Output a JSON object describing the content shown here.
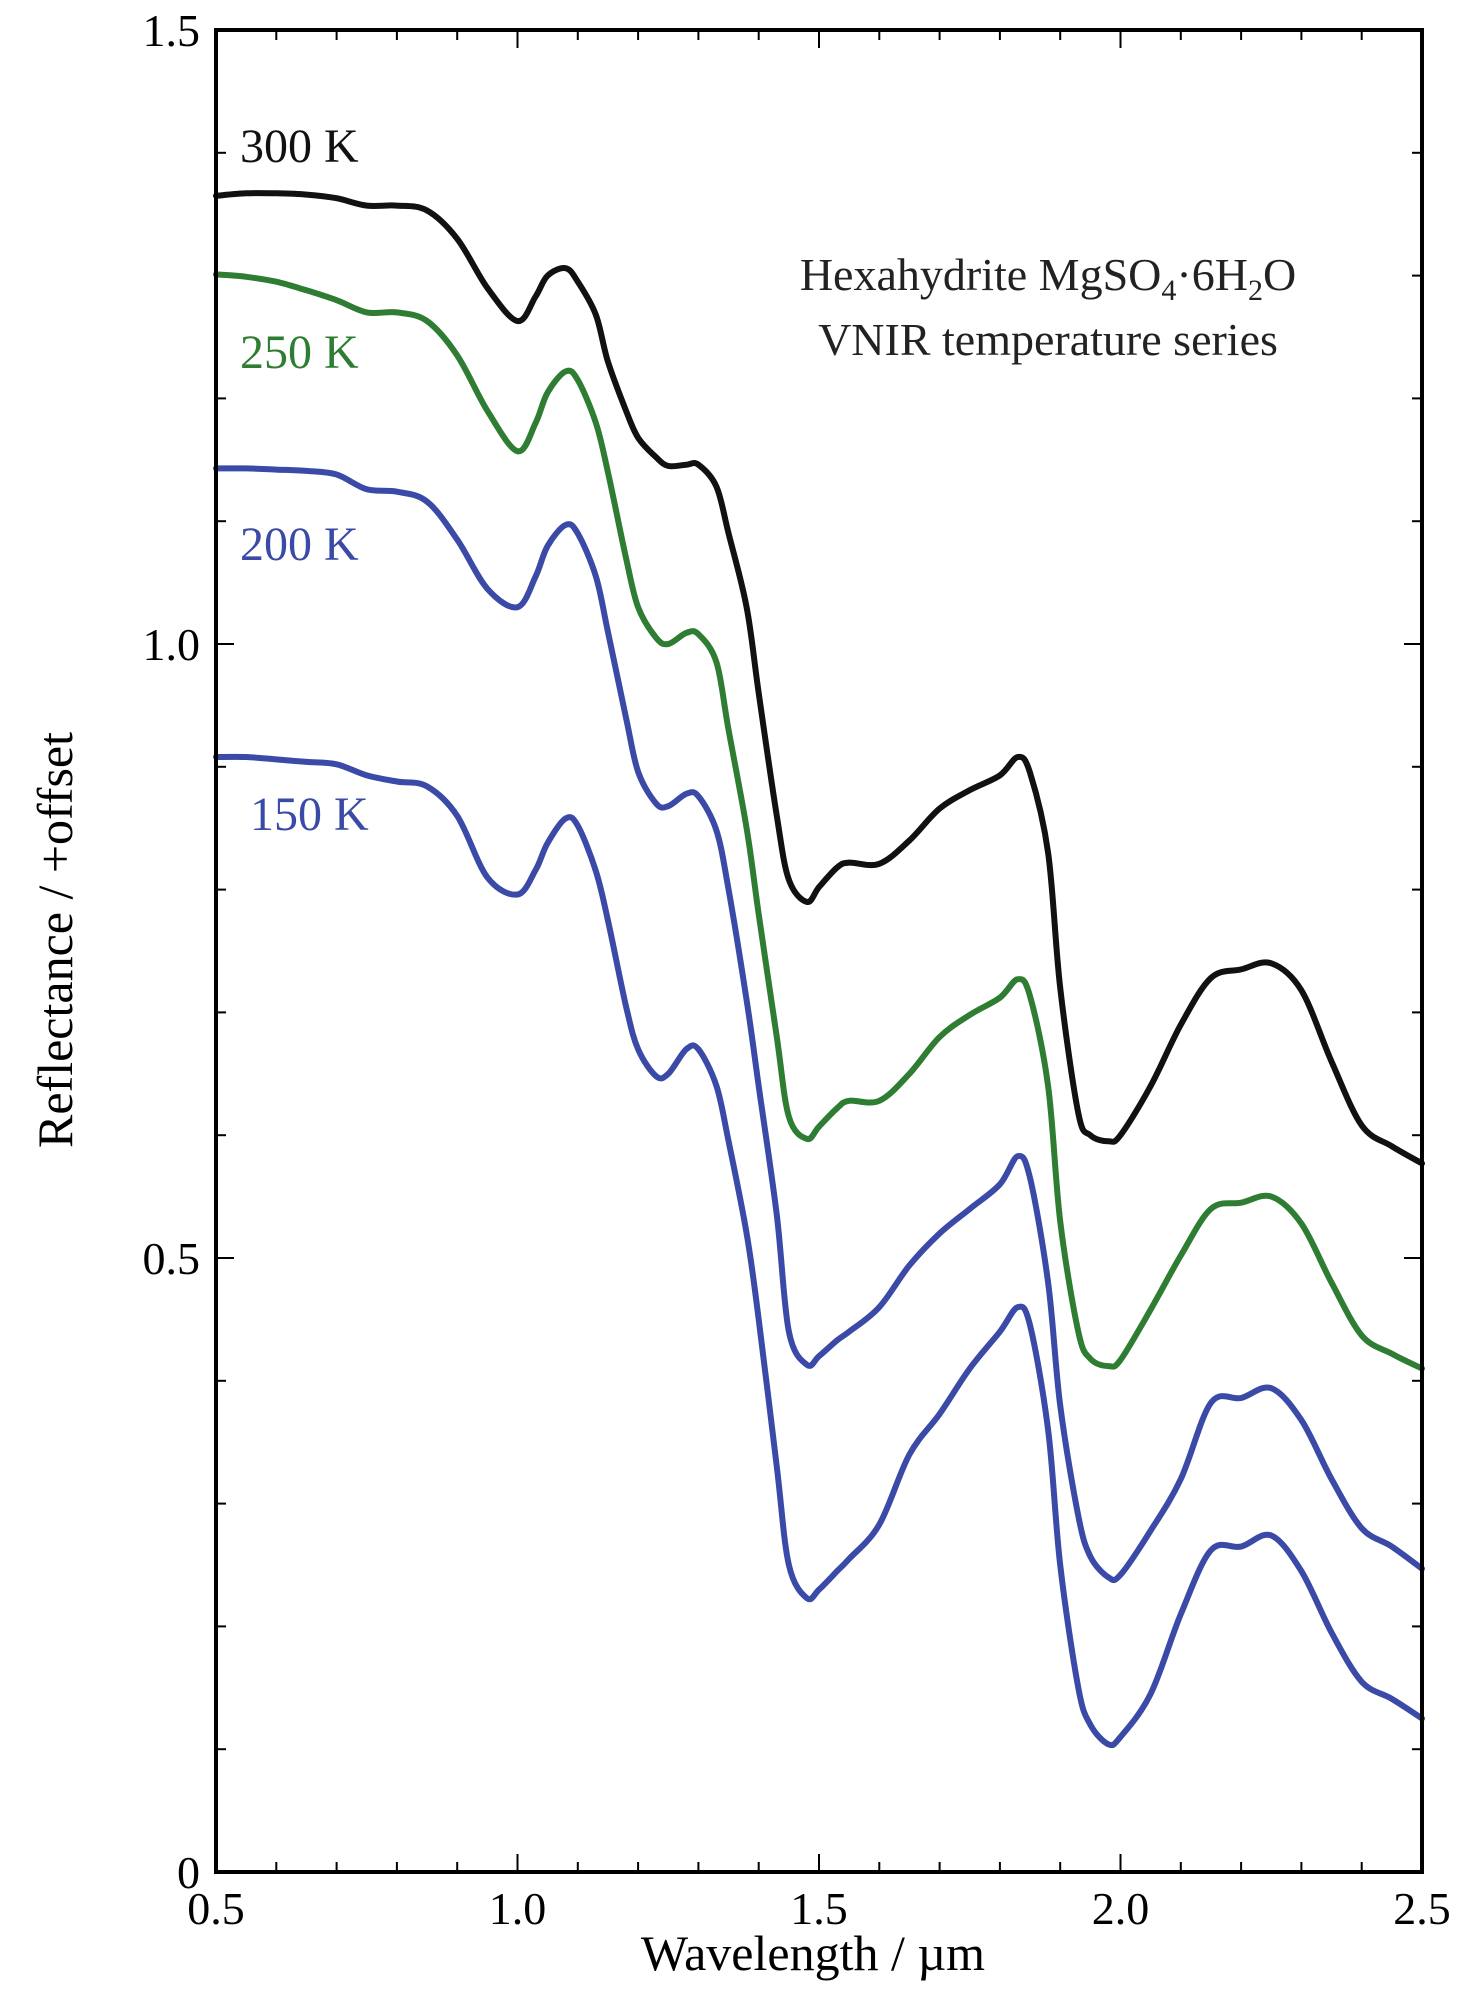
{
  "chart_data": {
    "type": "line",
    "title": "",
    "annotation": {
      "line1_prefix": "Hexahydrite MgSO",
      "line1_sub1": "4",
      "line1_mid": "·6H",
      "line1_sub2": "2",
      "line1_suffix": "O",
      "line2": "VNIR temperature series"
    },
    "xlabel": "Wavelength / µm",
    "ylabel": "Reflectance / +offset",
    "xlim": [
      0.5,
      2.5
    ],
    "ylim": [
      0,
      1.5
    ],
    "xticks": [
      0.5,
      1.0,
      1.5,
      2.0,
      2.5
    ],
    "xtick_labels": [
      "0.5",
      "1.0",
      "1.5",
      "2.0",
      "2.5"
    ],
    "yticks": [
      0,
      0.5,
      1.0,
      1.5
    ],
    "ytick_labels": [
      "0",
      "0.5",
      "1.0",
      "1.5"
    ],
    "grid": false,
    "series": [
      {
        "name": "300 K",
        "color": "#111111",
        "x": [
          0.5,
          0.55,
          0.6,
          0.65,
          0.7,
          0.75,
          0.8,
          0.85,
          0.9,
          0.95,
          1.0,
          1.03,
          1.05,
          1.08,
          1.1,
          1.13,
          1.15,
          1.18,
          1.2,
          1.23,
          1.25,
          1.28,
          1.3,
          1.33,
          1.35,
          1.38,
          1.4,
          1.43,
          1.45,
          1.48,
          1.5,
          1.53,
          1.55,
          1.6,
          1.65,
          1.7,
          1.75,
          1.8,
          1.83,
          1.85,
          1.88,
          1.9,
          1.93,
          1.95,
          1.98,
          2.0,
          2.05,
          2.1,
          2.15,
          2.2,
          2.25,
          2.3,
          2.35,
          2.4,
          2.45,
          2.5
        ],
        "y": [
          1.365,
          1.367,
          1.367,
          1.366,
          1.363,
          1.357,
          1.357,
          1.353,
          1.33,
          1.29,
          1.263,
          1.283,
          1.3,
          1.306,
          1.295,
          1.268,
          1.23,
          1.19,
          1.168,
          1.152,
          1.145,
          1.146,
          1.146,
          1.128,
          1.09,
          1.03,
          0.96,
          0.86,
          0.808,
          0.79,
          0.802,
          0.818,
          0.822,
          0.821,
          0.84,
          0.866,
          0.881,
          0.893,
          0.908,
          0.895,
          0.83,
          0.72,
          0.618,
          0.6,
          0.595,
          0.6,
          0.64,
          0.69,
          0.728,
          0.735,
          0.74,
          0.718,
          0.66,
          0.608,
          0.591,
          0.577
        ]
      },
      {
        "name": "250 K",
        "color": "#2e7d32",
        "x": [
          0.5,
          0.55,
          0.6,
          0.65,
          0.7,
          0.75,
          0.8,
          0.85,
          0.9,
          0.95,
          1.0,
          1.03,
          1.05,
          1.08,
          1.1,
          1.13,
          1.15,
          1.18,
          1.2,
          1.23,
          1.25,
          1.28,
          1.3,
          1.33,
          1.35,
          1.38,
          1.4,
          1.43,
          1.45,
          1.48,
          1.5,
          1.53,
          1.55,
          1.6,
          1.65,
          1.7,
          1.75,
          1.8,
          1.83,
          1.85,
          1.88,
          1.9,
          1.93,
          1.95,
          1.98,
          2.0,
          2.05,
          2.1,
          2.15,
          2.2,
          2.25,
          2.3,
          2.35,
          2.4,
          2.45,
          2.5
        ],
        "y": [
          1.301,
          1.299,
          1.295,
          1.288,
          1.28,
          1.27,
          1.27,
          1.263,
          1.235,
          1.19,
          1.157,
          1.18,
          1.205,
          1.222,
          1.215,
          1.18,
          1.14,
          1.07,
          1.03,
          1.005,
          1.0,
          1.009,
          1.008,
          0.985,
          0.93,
          0.85,
          0.78,
          0.68,
          0.615,
          0.597,
          0.607,
          0.622,
          0.628,
          0.628,
          0.65,
          0.68,
          0.698,
          0.712,
          0.727,
          0.713,
          0.64,
          0.53,
          0.44,
          0.418,
          0.412,
          0.417,
          0.458,
          0.502,
          0.54,
          0.545,
          0.55,
          0.528,
          0.48,
          0.437,
          0.422,
          0.41
        ]
      },
      {
        "name": "200 K",
        "color": "#3a4aa6",
        "x": [
          0.5,
          0.55,
          0.6,
          0.65,
          0.7,
          0.75,
          0.8,
          0.85,
          0.9,
          0.95,
          1.0,
          1.03,
          1.05,
          1.08,
          1.1,
          1.13,
          1.15,
          1.18,
          1.2,
          1.23,
          1.25,
          1.28,
          1.3,
          1.33,
          1.35,
          1.38,
          1.4,
          1.43,
          1.45,
          1.48,
          1.5,
          1.53,
          1.55,
          1.6,
          1.65,
          1.7,
          1.75,
          1.8,
          1.83,
          1.85,
          1.88,
          1.9,
          1.93,
          1.95,
          1.98,
          2.0,
          2.05,
          2.1,
          2.15,
          2.2,
          2.25,
          2.3,
          2.35,
          2.4,
          2.45,
          2.5
        ],
        "y": [
          1.143,
          1.143,
          1.142,
          1.141,
          1.138,
          1.126,
          1.124,
          1.116,
          1.085,
          1.045,
          1.03,
          1.055,
          1.08,
          1.097,
          1.09,
          1.055,
          1.01,
          0.94,
          0.896,
          0.87,
          0.868,
          0.878,
          0.876,
          0.848,
          0.8,
          0.71,
          0.64,
          0.535,
          0.44,
          0.413,
          0.42,
          0.433,
          0.44,
          0.46,
          0.494,
          0.52,
          0.54,
          0.56,
          0.583,
          0.565,
          0.48,
          0.38,
          0.29,
          0.257,
          0.24,
          0.242,
          0.278,
          0.32,
          0.382,
          0.386,
          0.394,
          0.368,
          0.32,
          0.28,
          0.265,
          0.247
        ]
      },
      {
        "name": "150 K",
        "color": "#3a4aa6",
        "x": [
          0.5,
          0.55,
          0.6,
          0.65,
          0.7,
          0.75,
          0.8,
          0.85,
          0.9,
          0.95,
          1.0,
          1.03,
          1.05,
          1.08,
          1.1,
          1.13,
          1.15,
          1.18,
          1.2,
          1.23,
          1.25,
          1.28,
          1.3,
          1.33,
          1.35,
          1.38,
          1.4,
          1.43,
          1.45,
          1.48,
          1.5,
          1.53,
          1.55,
          1.6,
          1.65,
          1.7,
          1.75,
          1.8,
          1.83,
          1.85,
          1.88,
          1.9,
          1.93,
          1.95,
          1.98,
          2.0,
          2.05,
          2.1,
          2.15,
          2.2,
          2.25,
          2.3,
          2.35,
          2.4,
          2.45,
          2.5
        ],
        "y": [
          0.908,
          0.908,
          0.906,
          0.904,
          0.902,
          0.893,
          0.888,
          0.884,
          0.86,
          0.81,
          0.796,
          0.816,
          0.838,
          0.858,
          0.852,
          0.815,
          0.775,
          0.705,
          0.67,
          0.648,
          0.65,
          0.67,
          0.67,
          0.64,
          0.595,
          0.52,
          0.45,
          0.33,
          0.25,
          0.223,
          0.23,
          0.245,
          0.255,
          0.283,
          0.34,
          0.373,
          0.41,
          0.44,
          0.46,
          0.445,
          0.36,
          0.25,
          0.15,
          0.12,
          0.104,
          0.11,
          0.145,
          0.21,
          0.262,
          0.265,
          0.274,
          0.245,
          0.195,
          0.155,
          0.141,
          0.125
        ]
      }
    ]
  }
}
